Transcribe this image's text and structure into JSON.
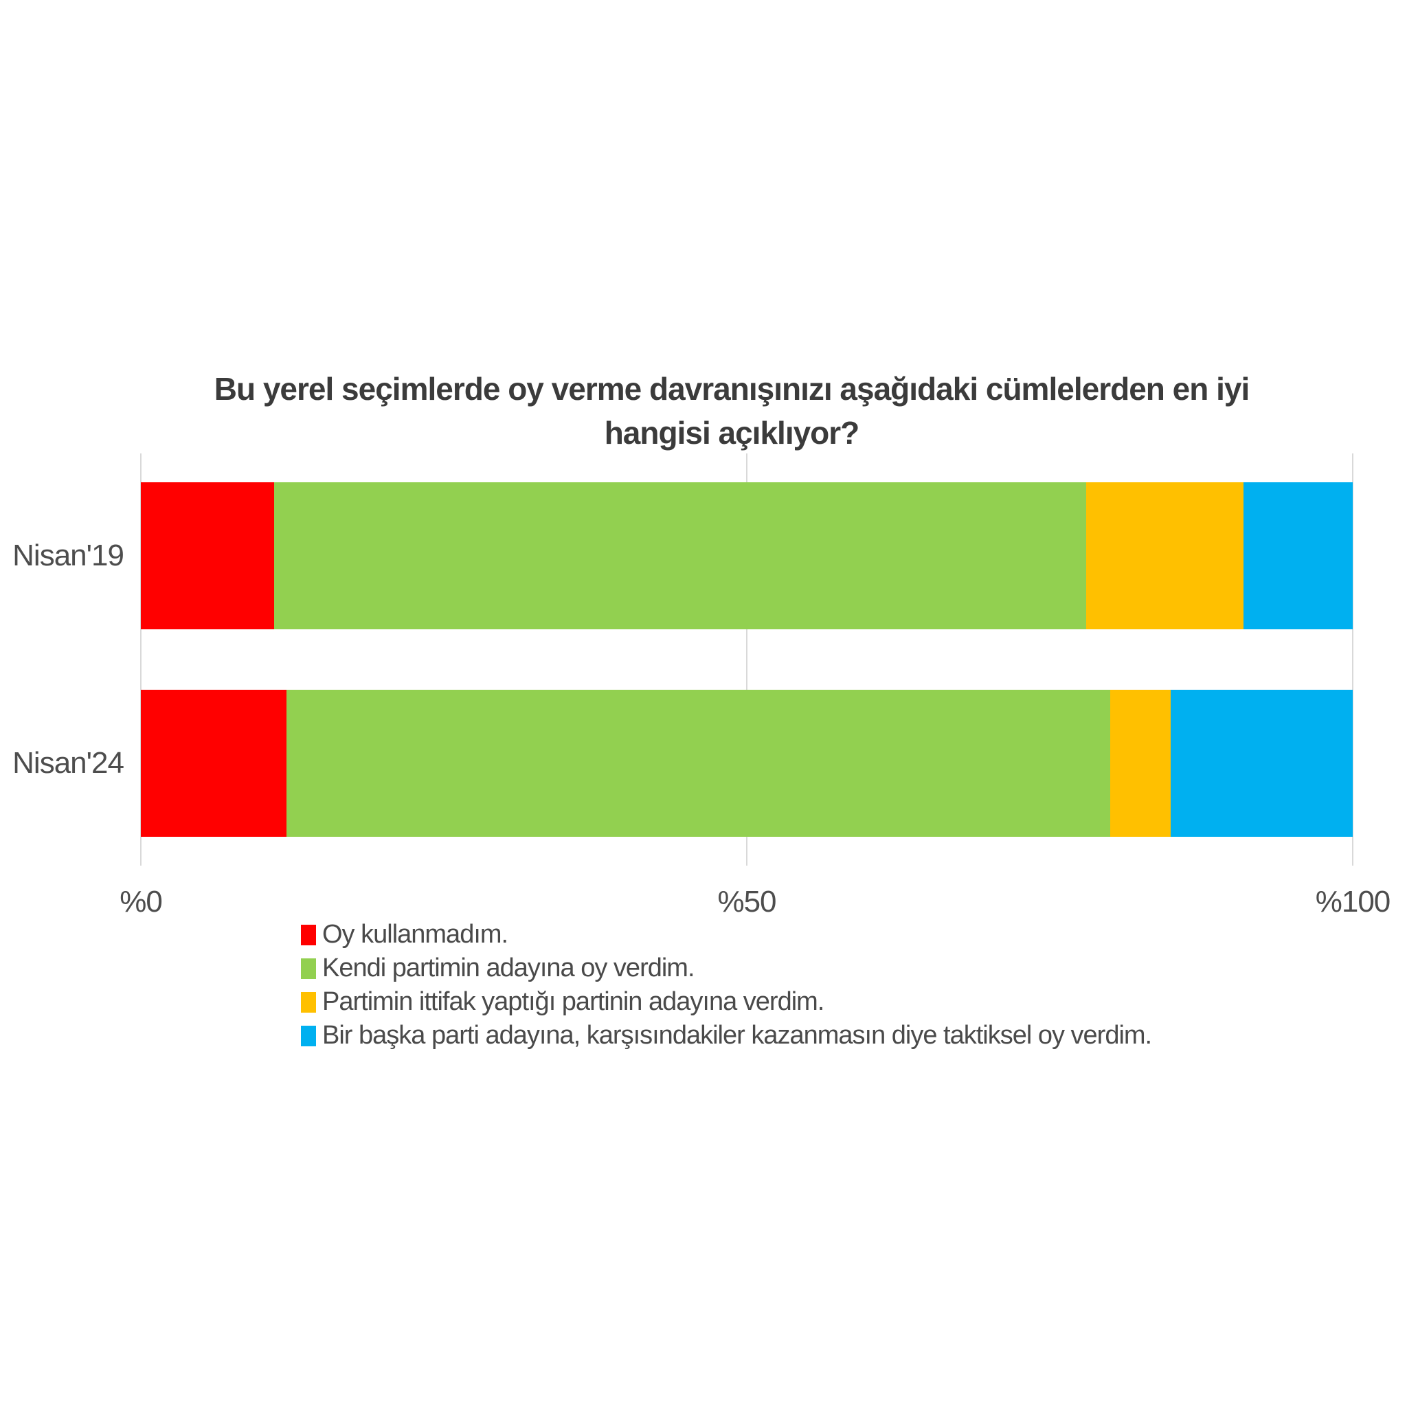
{
  "title": {
    "line1": "Bu yerel seçimlerde oy verme davranışınızı aşağıdaki cümlelerden en iyi",
    "line2": "hangisi açıklıyor?"
  },
  "chart_data": {
    "type": "bar",
    "orientation": "horizontal",
    "stacked": true,
    "categories": [
      "Nisan'19",
      "Nisan'24"
    ],
    "series": [
      {
        "name": "Oy kullanmadım.",
        "color": "#ff0000",
        "values": [
          11,
          12
        ]
      },
      {
        "name": "Kendi partimin adayına oy verdim.",
        "color": "#92d050",
        "values": [
          67,
          68
        ]
      },
      {
        "name": "Partimin ittifak yaptığı partinin adayına verdim.",
        "color": "#ffc000",
        "values": [
          13,
          5
        ]
      },
      {
        "name": "Bir başka parti adayına, karşısındakiler kazanmasın diye taktiksel oy verdim.",
        "color": "#00b0f0",
        "values": [
          9,
          15
        ]
      }
    ],
    "x_axis": {
      "ticks": [
        "%0",
        "%50",
        "%100"
      ],
      "tick_values": [
        0,
        50,
        100
      ],
      "range": [
        0,
        100
      ]
    },
    "grid": "vertical-major-only",
    "gridline_color": "#d9d9d9",
    "legend_position": "bottom-left",
    "background_color": "#ffffff",
    "title_color": "#3b3b3b",
    "label_color": "#4d4d4d"
  }
}
